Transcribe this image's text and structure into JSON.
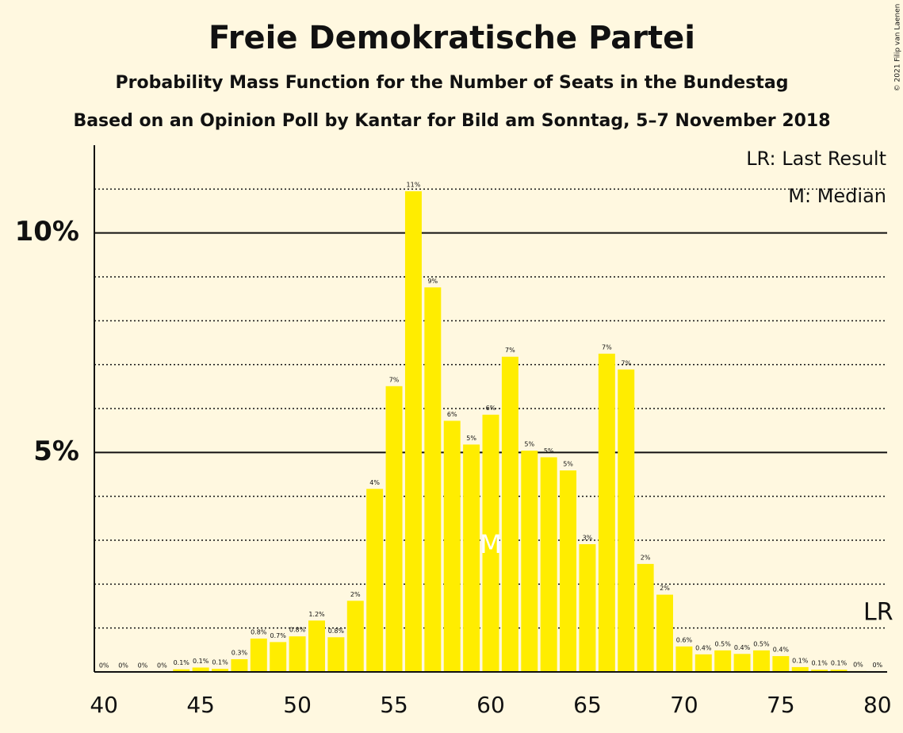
{
  "chart_data": {
    "type": "bar",
    "title": "Freie Demokratische Partei",
    "subtitle": "Probability Mass Function for the Number of Seats in the Bundestag",
    "subtitle2": "Based on an Opinion Poll by Kantar for Bild am Sonntag, 5–7 November 2018",
    "copyright": "© 2021 Filip van Laenen",
    "legend": [
      "LR: Last Result",
      "M: Median"
    ],
    "color": "#ffed00",
    "x": [
      40,
      41,
      42,
      43,
      44,
      45,
      46,
      47,
      48,
      49,
      50,
      51,
      52,
      53,
      54,
      55,
      56,
      57,
      58,
      59,
      60,
      61,
      62,
      63,
      64,
      65,
      66,
      67,
      68,
      69,
      70,
      71,
      72,
      73,
      74,
      75,
      76,
      77,
      78,
      79,
      80
    ],
    "values": [
      0,
      0,
      0,
      0,
      0.06,
      0.1,
      0.07,
      0.29,
      0.76,
      0.68,
      0.81,
      1.17,
      0.79,
      1.62,
      4.17,
      6.51,
      10.95,
      8.76,
      5.72,
      5.18,
      5.86,
      7.18,
      5.04,
      4.89,
      4.59,
      2.91,
      7.25,
      6.89,
      2.46,
      1.76,
      0.58,
      0.4,
      0.49,
      0.41,
      0.49,
      0.36,
      0.11,
      0.05,
      0.05,
      0.02,
      0.01
    ],
    "value_labels": [
      "0%",
      "0%",
      "0%",
      "0%",
      "0.1%",
      "0.1%",
      "0.1%",
      "0.3%",
      "0.8%",
      "0.7%",
      "0.8%",
      "1.2%",
      "0.8%",
      "2%",
      "4%",
      "7%",
      "11%",
      "9%",
      "6%",
      "5%",
      "6%",
      "7%",
      "5%",
      "5%",
      "5%",
      "3%",
      "7%",
      "7%",
      "2%",
      "2%",
      "0.6%",
      "0.4%",
      "0.5%",
      "0.4%",
      "0.5%",
      "0.4%",
      "0.1%",
      "0.1%",
      "0.1%",
      "0%",
      "0%"
    ],
    "median": 60,
    "median_label": "M",
    "last_result": 80,
    "last_result_label": "LR",
    "xlim": [
      39.5,
      80.5
    ],
    "xticks": [
      40,
      45,
      50,
      55,
      60,
      65,
      70,
      75,
      80
    ],
    "ylim": [
      0,
      12
    ],
    "yticks": [
      {
        "value": 5,
        "label": "5%"
      },
      {
        "value": 10,
        "label": "10%"
      }
    ],
    "minor_yticks": [
      1,
      2,
      3,
      4,
      6,
      7,
      8,
      9,
      11
    ]
  }
}
